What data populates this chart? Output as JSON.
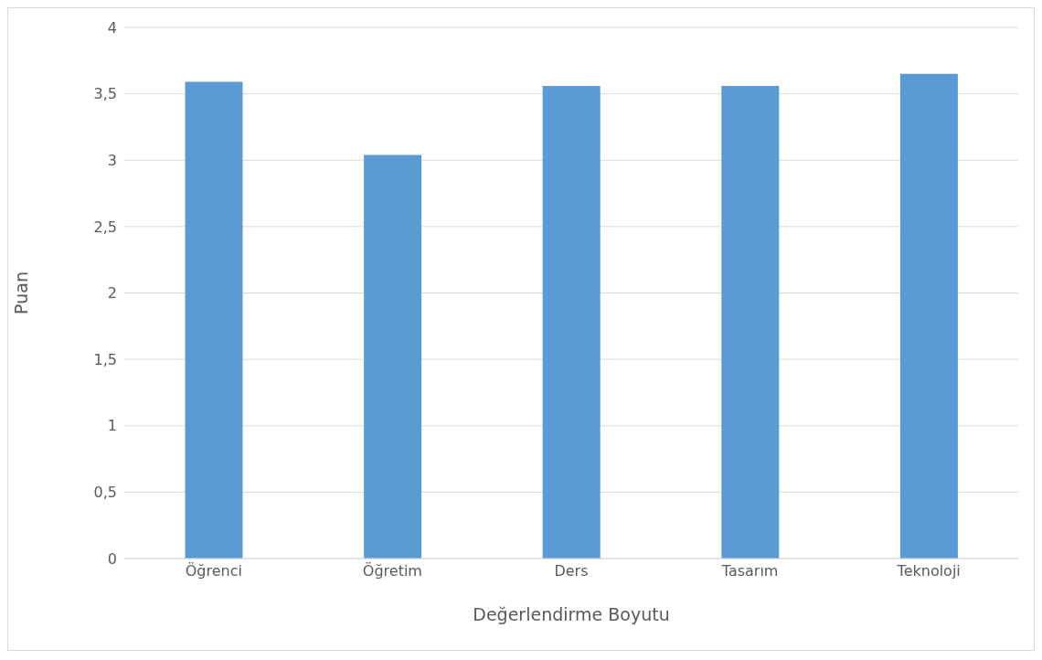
{
  "chart_data": {
    "type": "bar",
    "xlabel": "Değerlendirme Boyutu",
    "ylabel": "Puan",
    "categories": [
      "Öğrenci",
      "Öğretim",
      "Ders",
      "Tasarım",
      "Teknoloji"
    ],
    "values": [
      3.59,
      3.04,
      3.56,
      3.56,
      3.65
    ],
    "color": "#5b9bd5",
    "ylim": [
      0,
      4
    ],
    "yticks": [
      {
        "value": 0,
        "label": "0"
      },
      {
        "value": 0.5,
        "label": "0,5"
      },
      {
        "value": 1,
        "label": "1"
      },
      {
        "value": 1.5,
        "label": "1,5"
      },
      {
        "value": 2,
        "label": "2"
      },
      {
        "value": 2.5,
        "label": "2,5"
      },
      {
        "value": 3,
        "label": "3"
      },
      {
        "value": 3.5,
        "label": "3,5"
      },
      {
        "value": 4,
        "label": "4"
      }
    ],
    "grid": "y"
  }
}
